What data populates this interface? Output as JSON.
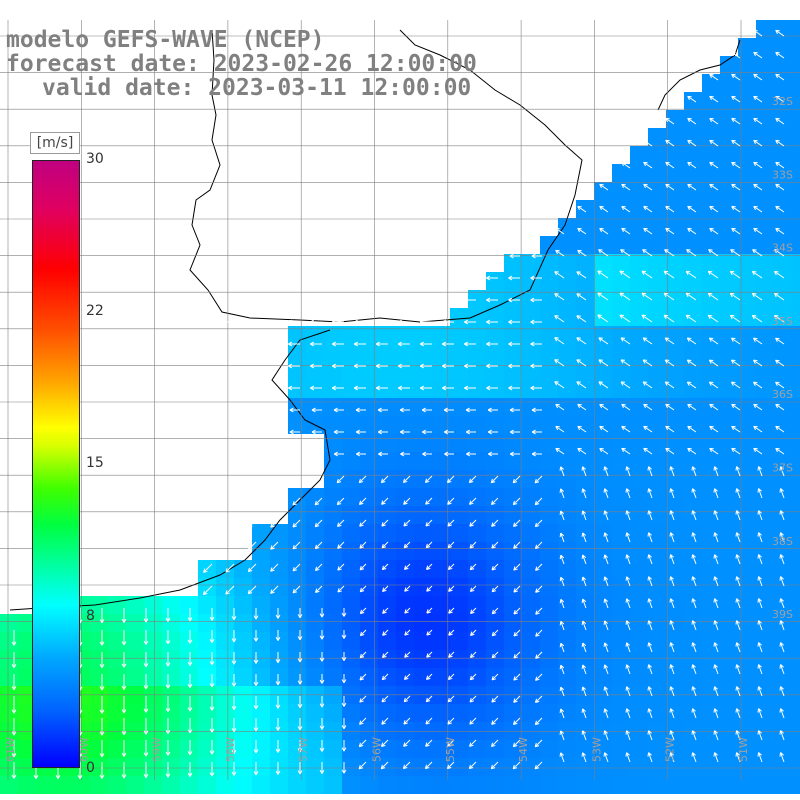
{
  "title": {
    "line1": "modelo GEFS-WAVE (NCEP)",
    "line2": "forecast date: 2023-02-26 12:00:00",
    "line3": "valid date: 2023-03-11 12:00:00"
  },
  "colorbar": {
    "unit": "[m/s]",
    "ticks": [
      "30",
      "22",
      "15",
      "8",
      "0"
    ],
    "tick_values": [
      30,
      22,
      15,
      8,
      0
    ]
  },
  "map": {
    "longitude_labels": [
      "61W",
      "60W",
      "59W",
      "58W",
      "57W",
      "56W",
      "55W",
      "54W",
      "53W",
      "52W",
      "51W"
    ],
    "latitude_labels": [
      "32S",
      "33S",
      "34S",
      "35S",
      "36S",
      "37S",
      "38S",
      "39S"
    ],
    "colors": {
      "land": "#ffffff",
      "grid": "#808080",
      "coast": "#000000",
      "arrow": "#ffffff"
    }
  }
}
